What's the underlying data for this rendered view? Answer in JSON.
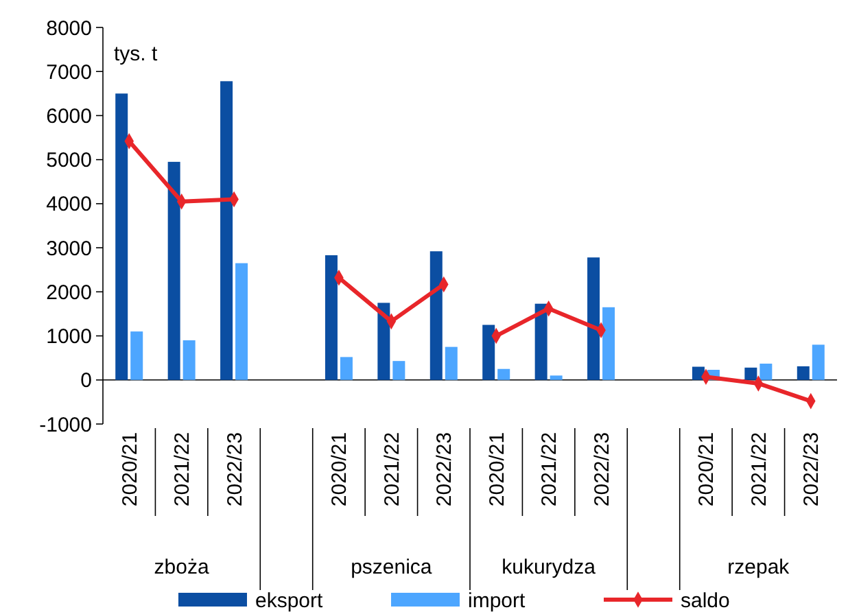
{
  "chart_data": {
    "type": "bar",
    "ylabel": "tys. t",
    "categories": [
      "2020/21",
      "2021/22",
      "2022/23",
      null,
      "2020/21",
      "2021/22",
      "2022/23",
      "2020/21",
      "2021/22",
      "2022/23",
      null,
      "2020/21",
      "2021/22",
      "2022/23"
    ],
    "series": [
      {
        "name": "eksport",
        "color": "#0b4ea2",
        "values": [
          6500,
          4950,
          6780,
          null,
          2830,
          1750,
          2920,
          1250,
          1730,
          2780,
          null,
          300,
          280,
          310
        ]
      },
      {
        "name": "import",
        "color": "#4da6ff",
        "values": [
          1100,
          900,
          2650,
          null,
          520,
          430,
          750,
          250,
          100,
          1650,
          null,
          230,
          370,
          800
        ]
      },
      {
        "name": "saldo",
        "type": "line",
        "color": "#e8262a",
        "values": [
          5420,
          4050,
          4100,
          null,
          null,
          null,
          null,
          null,
          null,
          null,
          null,
          null,
          null,
          null
        ]
      },
      {
        "type": "line",
        "color": "#e8262a",
        "values": [
          null,
          null,
          null,
          null,
          2320,
          1330,
          2170,
          null,
          null,
          null,
          null,
          null,
          null,
          null
        ]
      },
      {
        "type": "line",
        "color": "#e8262a",
        "values": [
          null,
          null,
          null,
          null,
          null,
          null,
          null,
          1000,
          1620,
          1130,
          null,
          null,
          null,
          null
        ]
      },
      {
        "type": "line",
        "color": "#e8262a",
        "values": [
          null,
          null,
          null,
          null,
          null,
          null,
          null,
          null,
          null,
          null,
          null,
          70,
          -80,
          -480
        ]
      }
    ],
    "annotations": [
      "zboża",
      "pszenica",
      "kukurydza",
      "rzepak"
    ],
    "ylim": [
      -1000,
      8000
    ],
    "yticks": [
      -1000,
      0,
      1000,
      2000,
      3000,
      4000,
      5000,
      6000,
      7000,
      8000
    ],
    "marker": "diamond",
    "legend": "bottom",
    "grid": false
  }
}
